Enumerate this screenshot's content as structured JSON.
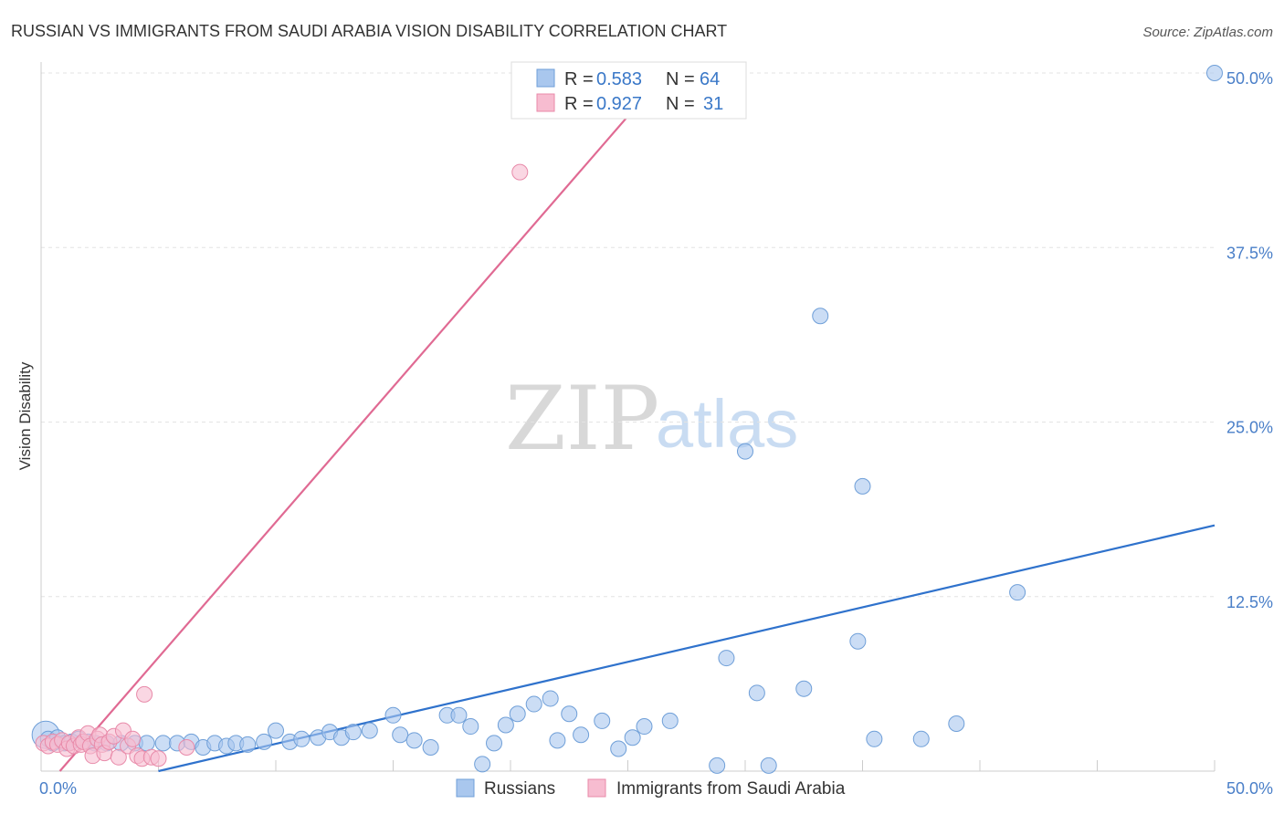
{
  "chart_data": {
    "type": "scatter",
    "title": "RUSSIAN VS IMMIGRANTS FROM SAUDI ARABIA VISION DISABILITY CORRELATION CHART",
    "source": "Source: ZipAtlas.com",
    "xlabel": "",
    "ylabel": "Vision Disability",
    "xlim": [
      0,
      50
    ],
    "ylim": [
      0,
      50
    ],
    "x_tick_labels": [
      "0.0%",
      "50.0%"
    ],
    "y_ticks": [
      {
        "value": 12.5,
        "label": "12.5%"
      },
      {
        "value": 25.0,
        "label": "25.0%"
      },
      {
        "value": 37.5,
        "label": "37.5%"
      },
      {
        "value": 50.0,
        "label": "50.0%"
      }
    ],
    "grid": true,
    "legend": {
      "placement": "top-center",
      "entries": [
        {
          "r_label": "R =",
          "r_value": "0.583",
          "n_label": "N =",
          "n_value": "64"
        },
        {
          "r_label": "R =",
          "r_value": "0.927",
          "n_label": "N =",
          "n_value": "31"
        }
      ]
    },
    "watermark": {
      "zip": "ZIP",
      "atlas": "atlas"
    },
    "series": [
      {
        "name": "Russians",
        "color": "#a9c7ee",
        "stroke": "#6f9fd8",
        "line_color": "#2f72cc",
        "trend": {
          "x0": 5,
          "y0": 0,
          "x1": 50,
          "y1": 17.6
        },
        "points": [
          [
            0.3,
            2.3
          ],
          [
            0.5,
            2.0
          ],
          [
            0.7,
            2.4
          ],
          [
            1.0,
            2.0
          ],
          [
            1.3,
            2.1
          ],
          [
            1.6,
            2.3
          ],
          [
            2.0,
            2.1
          ],
          [
            2.3,
            2.0
          ],
          [
            2.8,
            2.0
          ],
          [
            3.4,
            2.0
          ],
          [
            4.0,
            2.0
          ],
          [
            4.5,
            2.0
          ],
          [
            5.2,
            2.0
          ],
          [
            5.8,
            2.0
          ],
          [
            6.4,
            2.1
          ],
          [
            6.9,
            1.7
          ],
          [
            7.4,
            2.0
          ],
          [
            7.9,
            1.8
          ],
          [
            8.3,
            2.0
          ],
          [
            8.8,
            1.9
          ],
          [
            9.5,
            2.1
          ],
          [
            10.0,
            2.9
          ],
          [
            10.6,
            2.1
          ],
          [
            11.1,
            2.3
          ],
          [
            11.8,
            2.4
          ],
          [
            12.3,
            2.8
          ],
          [
            12.8,
            2.4
          ],
          [
            13.3,
            2.8
          ],
          [
            14.0,
            2.9
          ],
          [
            15.0,
            4.0
          ],
          [
            15.3,
            2.6
          ],
          [
            15.9,
            2.2
          ],
          [
            16.6,
            1.7
          ],
          [
            17.3,
            4.0
          ],
          [
            17.8,
            4.0
          ],
          [
            18.3,
            3.2
          ],
          [
            18.8,
            0.5
          ],
          [
            19.3,
            2.0
          ],
          [
            19.8,
            3.3
          ],
          [
            20.3,
            4.1
          ],
          [
            21.0,
            4.8
          ],
          [
            21.7,
            5.2
          ],
          [
            22.0,
            2.2
          ],
          [
            22.5,
            4.1
          ],
          [
            23.0,
            2.6
          ],
          [
            23.9,
            3.6
          ],
          [
            24.6,
            1.6
          ],
          [
            25.2,
            2.4
          ],
          [
            25.7,
            3.2
          ],
          [
            26.8,
            3.6
          ],
          [
            28.8,
            0.4
          ],
          [
            30.5,
            5.6
          ],
          [
            31.0,
            0.4
          ],
          [
            32.5,
            5.9
          ],
          [
            29.2,
            8.1
          ],
          [
            33.2,
            32.6
          ],
          [
            34.8,
            9.3
          ],
          [
            35.5,
            2.3
          ],
          [
            37.5,
            2.3
          ],
          [
            39.0,
            3.4
          ],
          [
            41.6,
            12.8
          ],
          [
            30.0,
            22.9
          ],
          [
            35.0,
            20.4
          ],
          [
            50.0,
            50.0
          ]
        ]
      },
      {
        "name": "Immigrants from Saudi Arabia",
        "color": "#f7bcd0",
        "stroke": "#e88aa9",
        "line_color": "#e06a93",
        "trend": {
          "x0": 0.8,
          "y0": 0,
          "x1": 25,
          "y1": 46.9
        },
        "points": [
          [
            0.1,
            2.0
          ],
          [
            0.3,
            1.8
          ],
          [
            0.5,
            2.1
          ],
          [
            0.7,
            1.9
          ],
          [
            0.9,
            2.2
          ],
          [
            1.1,
            1.6
          ],
          [
            1.2,
            2.0
          ],
          [
            1.4,
            1.8
          ],
          [
            1.6,
            2.4
          ],
          [
            1.7,
            1.9
          ],
          [
            1.8,
            2.1
          ],
          [
            2.0,
            2.7
          ],
          [
            2.1,
            1.8
          ],
          [
            2.2,
            1.1
          ],
          [
            2.4,
            2.3
          ],
          [
            2.5,
            2.6
          ],
          [
            2.6,
            1.9
          ],
          [
            2.7,
            1.3
          ],
          [
            2.9,
            2.1
          ],
          [
            3.1,
            2.5
          ],
          [
            3.3,
            1.0
          ],
          [
            3.5,
            2.9
          ],
          [
            3.7,
            1.8
          ],
          [
            3.9,
            2.3
          ],
          [
            4.1,
            1.1
          ],
          [
            4.3,
            0.9
          ],
          [
            4.4,
            5.5
          ],
          [
            4.7,
            1.0
          ],
          [
            5.0,
            0.9
          ],
          [
            6.2,
            1.7
          ],
          [
            20.4,
            42.9
          ]
        ]
      }
    ]
  }
}
